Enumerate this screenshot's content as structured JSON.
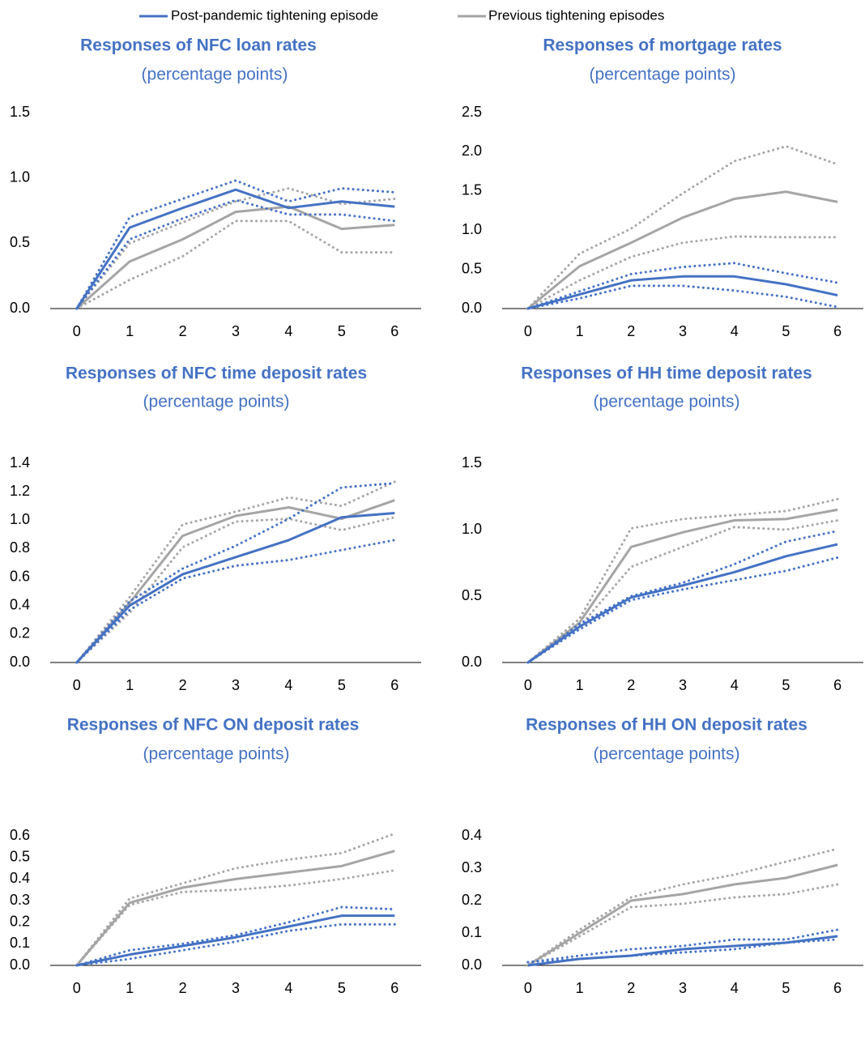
{
  "legend": [
    {
      "name": "Post-pandemic tightening episode",
      "color": "#4472c4"
    },
    {
      "name": "Previous tightening episodes",
      "color": "#a5a5a5"
    }
  ],
  "chart_data": [
    {
      "type": "line",
      "title": "Responses of NFC loan rates",
      "subtitle": "(percentage points)",
      "grid": false,
      "categories": [
        "0",
        "1",
        "2",
        "3",
        "4",
        "5",
        "6"
      ],
      "ylim": [
        0,
        1.5
      ],
      "yticks": [
        {
          "value": 0,
          "label": "0.0"
        },
        0.5,
        {
          "value": 1,
          "label": "1.0"
        },
        1.5
      ],
      "series": [
        {
          "color": "#a5a5a5",
          "dotted": true,
          "values": [
            0,
            0.5,
            0.66,
            0.82,
            0.92,
            0.8,
            0.84
          ]
        },
        {
          "color": "#a5a5a5",
          "dotted": true,
          "values": [
            0,
            0.22,
            0.4,
            0.67,
            0.67,
            0.43,
            0.43
          ]
        },
        {
          "color": "#a5a5a5",
          "dotted": false,
          "values": [
            0,
            0.36,
            0.53,
            0.74,
            0.78,
            0.61,
            0.64
          ]
        },
        {
          "color": "#4472c4",
          "dotted": true,
          "values": [
            0,
            0.7,
            0.84,
            0.98,
            0.82,
            0.92,
            0.89
          ]
        },
        {
          "color": "#4472c4",
          "dotted": true,
          "values": [
            0,
            0.53,
            0.69,
            0.83,
            0.72,
            0.72,
            0.67
          ]
        },
        {
          "color": "#4472c4",
          "dotted": false,
          "values": [
            0,
            0.62,
            0.77,
            0.91,
            0.77,
            0.82,
            0.78
          ]
        }
      ]
    },
    {
      "type": "line",
      "title": "Responses of mortgage rates",
      "subtitle": "(percentage points)",
      "grid": false,
      "categories": [
        "0",
        "1",
        "2",
        "3",
        "4",
        "5",
        "6"
      ],
      "ylim": [
        0,
        2.5
      ],
      "yticks": [
        {
          "value": 0,
          "label": "0.0"
        },
        0.5,
        {
          "value": 1,
          "label": "1.0"
        },
        1.5,
        {
          "value": 2,
          "label": "2.0"
        },
        2.5
      ],
      "series": [
        {
          "color": "#a5a5a5",
          "dotted": true,
          "values": [
            0,
            0.7,
            1.02,
            1.47,
            1.88,
            2.07,
            1.84
          ]
        },
        {
          "color": "#a5a5a5",
          "dotted": true,
          "values": [
            0,
            0.36,
            0.66,
            0.84,
            0.92,
            0.91,
            0.91
          ]
        },
        {
          "color": "#a5a5a5",
          "dotted": false,
          "values": [
            0,
            0.54,
            0.84,
            1.16,
            1.4,
            1.49,
            1.36
          ]
        },
        {
          "color": "#4472c4",
          "dotted": true,
          "values": [
            0,
            0.22,
            0.44,
            0.53,
            0.58,
            0.45,
            0.33
          ]
        },
        {
          "color": "#4472c4",
          "dotted": true,
          "values": [
            0,
            0.13,
            0.29,
            0.29,
            0.23,
            0.15,
            0.02
          ]
        },
        {
          "color": "#4472c4",
          "dotted": false,
          "values": [
            0,
            0.18,
            0.36,
            0.41,
            0.41,
            0.31,
            0.17
          ]
        }
      ]
    },
    {
      "type": "line",
      "title": "Responses of NFC time deposit rates",
      "subtitle": "(percentage points)",
      "grid": false,
      "categories": [
        "0",
        "1",
        "2",
        "3",
        "4",
        "5",
        "6"
      ],
      "ylim": [
        0,
        1.4
      ],
      "yticks": [
        {
          "value": 0,
          "label": "0.0"
        },
        0.2,
        0.4,
        0.6,
        0.8,
        {
          "value": 1,
          "label": "1.0"
        },
        1.2,
        1.4
      ],
      "series": [
        {
          "color": "#a5a5a5",
          "dotted": true,
          "values": [
            0,
            0.46,
            0.97,
            1.06,
            1.16,
            1.1,
            1.27
          ]
        },
        {
          "color": "#a5a5a5",
          "dotted": true,
          "values": [
            0,
            0.35,
            0.81,
            0.99,
            1.01,
            0.93,
            1.02
          ]
        },
        {
          "color": "#a5a5a5",
          "dotted": false,
          "values": [
            0,
            0.42,
            0.89,
            1.03,
            1.09,
            1.01,
            1.14
          ]
        },
        {
          "color": "#4472c4",
          "dotted": true,
          "values": [
            0,
            0.43,
            0.66,
            0.82,
            1.01,
            1.23,
            1.26
          ]
        },
        {
          "color": "#4472c4",
          "dotted": true,
          "values": [
            0,
            0.37,
            0.59,
            0.68,
            0.72,
            0.79,
            0.86
          ]
        },
        {
          "color": "#4472c4",
          "dotted": false,
          "values": [
            0,
            0.4,
            0.62,
            0.74,
            0.86,
            1.02,
            1.05
          ]
        }
      ]
    },
    {
      "type": "line",
      "title": "Responses of HH time deposit rates",
      "subtitle": "(percentage points)",
      "grid": false,
      "categories": [
        "0",
        "1",
        "2",
        "3",
        "4",
        "5",
        "6"
      ],
      "ylim": [
        0,
        1.5
      ],
      "yticks": [
        {
          "value": 0,
          "label": "0.0"
        },
        0.5,
        {
          "value": 1,
          "label": "1.0"
        },
        1.5
      ],
      "series": [
        {
          "color": "#a5a5a5",
          "dotted": true,
          "values": [
            0,
            0.33,
            1.01,
            1.08,
            1.11,
            1.14,
            1.23
          ]
        },
        {
          "color": "#a5a5a5",
          "dotted": true,
          "values": [
            0,
            0.27,
            0.72,
            0.87,
            1.02,
            1.0,
            1.07
          ]
        },
        {
          "color": "#a5a5a5",
          "dotted": false,
          "values": [
            0,
            0.3,
            0.87,
            0.98,
            1.07,
            1.08,
            1.15
          ]
        },
        {
          "color": "#4472c4",
          "dotted": true,
          "values": [
            0,
            0.29,
            0.5,
            0.6,
            0.74,
            0.91,
            0.99
          ]
        },
        {
          "color": "#4472c4",
          "dotted": true,
          "values": [
            0,
            0.25,
            0.47,
            0.55,
            0.62,
            0.69,
            0.79
          ]
        },
        {
          "color": "#4472c4",
          "dotted": false,
          "values": [
            0,
            0.27,
            0.49,
            0.58,
            0.68,
            0.8,
            0.89
          ]
        }
      ]
    },
    {
      "type": "line",
      "title": "Responses of NFC ON deposit rates",
      "subtitle": "(percentage points)",
      "grid": false,
      "categories": [
        "0",
        "1",
        "2",
        "3",
        "4",
        "5",
        "6"
      ],
      "ylim": [
        0,
        0.6
      ],
      "yticks": [
        {
          "value": 0,
          "label": "0.0"
        },
        0.1,
        0.2,
        0.3,
        0.4,
        0.5,
        0.6
      ],
      "series": [
        {
          "color": "#a5a5a5",
          "dotted": true,
          "values": [
            0,
            0.31,
            0.38,
            0.45,
            0.49,
            0.52,
            0.61
          ]
        },
        {
          "color": "#a5a5a5",
          "dotted": true,
          "values": [
            0,
            0.28,
            0.34,
            0.35,
            0.37,
            0.4,
            0.44
          ]
        },
        {
          "color": "#a5a5a5",
          "dotted": false,
          "values": [
            0,
            0.29,
            0.36,
            0.4,
            0.43,
            0.46,
            0.53
          ]
        },
        {
          "color": "#4472c4",
          "dotted": true,
          "values": [
            0,
            0.07,
            0.1,
            0.14,
            0.2,
            0.27,
            0.26
          ]
        },
        {
          "color": "#4472c4",
          "dotted": true,
          "values": [
            0,
            0.03,
            0.07,
            0.11,
            0.16,
            0.19,
            0.19
          ]
        },
        {
          "color": "#4472c4",
          "dotted": false,
          "values": [
            0,
            0.05,
            0.09,
            0.13,
            0.18,
            0.23,
            0.23
          ]
        }
      ]
    },
    {
      "type": "line",
      "title": "Responses of HH ON deposit rates",
      "subtitle": "(percentage points)",
      "grid": false,
      "categories": [
        "0",
        "1",
        "2",
        "3",
        "4",
        "5",
        "6"
      ],
      "ylim": [
        0,
        0.4
      ],
      "yticks": [
        {
          "value": 0,
          "label": "0.0"
        },
        0.1,
        0.2,
        0.3,
        0.4
      ],
      "series": [
        {
          "color": "#a5a5a5",
          "dotted": true,
          "values": [
            0,
            0.11,
            0.21,
            0.25,
            0.28,
            0.32,
            0.36
          ]
        },
        {
          "color": "#a5a5a5",
          "dotted": true,
          "values": [
            0,
            0.09,
            0.18,
            0.19,
            0.21,
            0.22,
            0.25
          ]
        },
        {
          "color": "#a5a5a5",
          "dotted": false,
          "values": [
            0,
            0.1,
            0.2,
            0.22,
            0.25,
            0.27,
            0.31
          ]
        },
        {
          "color": "#4472c4",
          "dotted": true,
          "values": [
            0.01,
            0.03,
            0.05,
            0.06,
            0.08,
            0.08,
            0.11
          ]
        },
        {
          "color": "#4472c4",
          "dotted": true,
          "values": [
            0.01,
            0.02,
            0.03,
            0.04,
            0.05,
            0.07,
            0.08
          ]
        },
        {
          "color": "#4472c4",
          "dotted": false,
          "values": [
            0,
            0.02,
            0.03,
            0.05,
            0.06,
            0.07,
            0.09
          ]
        }
      ]
    }
  ]
}
